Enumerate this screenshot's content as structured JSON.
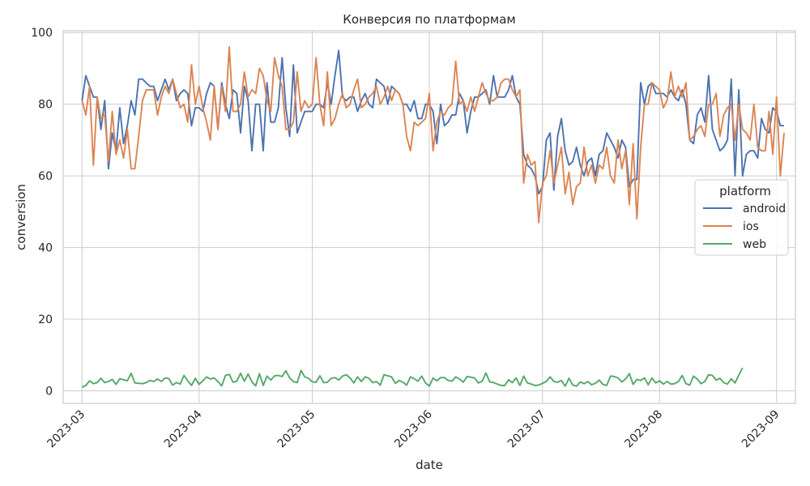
{
  "chart_data": {
    "type": "line",
    "title": "Конверсия по платформам",
    "xlabel": "date",
    "ylabel": "conversion",
    "x_start": "2023-03-01",
    "x_end": "2023-08-31",
    "xlim": [
      "2023-02-24",
      "2023-09-06"
    ],
    "ylim": [
      -3.5,
      100.5
    ],
    "x_ticks": [
      "2023-03-01",
      "2023-04-01",
      "2023-05-01",
      "2023-06-01",
      "2023-07-01",
      "2023-08-01",
      "2023-09-01"
    ],
    "x_tick_labels": [
      "2023-03",
      "2023-04",
      "2023-05",
      "2023-06",
      "2023-07",
      "2023-08",
      "2023-09"
    ],
    "y_ticks": [
      0,
      20,
      40,
      60,
      80,
      100
    ],
    "y_tick_labels": [
      "0",
      "20",
      "40",
      "60",
      "80",
      "100"
    ],
    "grid": true,
    "legend": {
      "title": "platform",
      "placement": "center-right"
    },
    "series": [
      {
        "name": "android",
        "color": "#4c72b0",
        "values": [
          81,
          88,
          85,
          82,
          82,
          73,
          81,
          62,
          72,
          67,
          79,
          69,
          74,
          81,
          77,
          87,
          87,
          86,
          85,
          85,
          81,
          84,
          87,
          84,
          87,
          81,
          83,
          84,
          83,
          74,
          79,
          79,
          78,
          83,
          86,
          85,
          73,
          86,
          80,
          76,
          84,
          83,
          72,
          85,
          81,
          67,
          80,
          80,
          67,
          86,
          75,
          75,
          79,
          93,
          79,
          71,
          91,
          72,
          75,
          78,
          78,
          78,
          80,
          80,
          79,
          86,
          80,
          88,
          95,
          82,
          81,
          82,
          82,
          78,
          81,
          83,
          80,
          79,
          87,
          86,
          85,
          80,
          85,
          84,
          83,
          80,
          80,
          78,
          81,
          76,
          76,
          80,
          80,
          78,
          69,
          80,
          74,
          75,
          77,
          77,
          83,
          81,
          72,
          78,
          82,
          82,
          83,
          84,
          80,
          88,
          82,
          82,
          82,
          84,
          88,
          82,
          80,
          66,
          63,
          62,
          60,
          55,
          57,
          70,
          72,
          56,
          71,
          76,
          67,
          63,
          64,
          68,
          63,
          60,
          64,
          65,
          60,
          66,
          67,
          72,
          70,
          68,
          65,
          70,
          68,
          57,
          59,
          59,
          86,
          80,
          85,
          86,
          83,
          83,
          83,
          82,
          84,
          82,
          81,
          84,
          80,
          70,
          69,
          77,
          79,
          75,
          88,
          73,
          70,
          67,
          68,
          70,
          87,
          60,
          84,
          60,
          66,
          67,
          67,
          65,
          76,
          73,
          72,
          79,
          78,
          74,
          74
        ]
      },
      {
        "name": "ios",
        "color": "#dd8452",
        "values": [
          81,
          77,
          85,
          63,
          82,
          76,
          77,
          64,
          78,
          66,
          70,
          65,
          73,
          62,
          62,
          71,
          81,
          84,
          84,
          84,
          77,
          82,
          85,
          83,
          87,
          83,
          79,
          80,
          75,
          91,
          80,
          85,
          79,
          75,
          70,
          85,
          73,
          85,
          78,
          96,
          78,
          78,
          80,
          89,
          82,
          84,
          83,
          90,
          88,
          81,
          78,
          93,
          88,
          85,
          73,
          73,
          75,
          89,
          78,
          81,
          79,
          80,
          93,
          80,
          74,
          89,
          74,
          76,
          80,
          83,
          79,
          80,
          84,
          87,
          79,
          80,
          82,
          83,
          85,
          80,
          82,
          85,
          81,
          84,
          83,
          80,
          71,
          67,
          75,
          74,
          75,
          76,
          83,
          67,
          75,
          78,
          77,
          79,
          80,
          92,
          80,
          81,
          78,
          82,
          78,
          82,
          86,
          83,
          81,
          81,
          82,
          86,
          87,
          87,
          84,
          82,
          84,
          58,
          66,
          63,
          64,
          47,
          58,
          60,
          67,
          58,
          63,
          68,
          55,
          61,
          52,
          57,
          58,
          68,
          60,
          63,
          58,
          63,
          62,
          68,
          60,
          58,
          70,
          62,
          67,
          52,
          69,
          48,
          68,
          80,
          80,
          86,
          85,
          84,
          79,
          81,
          89,
          82,
          85,
          82,
          86,
          70,
          71,
          73,
          74,
          71,
          80,
          80,
          83,
          71,
          77,
          79,
          80,
          70,
          80,
          73,
          72,
          70,
          80,
          68,
          67,
          67,
          78,
          66,
          82,
          60,
          72
        ]
      },
      {
        "name": "web",
        "color": "#55a868",
        "values": [
          1.0,
          1.5,
          2.8,
          2.0,
          2.3,
          3.5,
          2.3,
          2.6,
          3.2,
          1.8,
          3.4,
          3.1,
          2.8,
          4.9,
          2.2,
          2.1,
          2.0,
          2.3,
          2.9,
          2.6,
          3.3,
          2.6,
          3.6,
          3.4,
          1.6,
          2.3,
          1.9,
          4.3,
          2.8,
          1.5,
          3.5,
          1.8,
          2.8,
          3.9,
          3.3,
          3.6,
          2.6,
          1.4,
          4.3,
          4.6,
          2.4,
          2.7,
          4.9,
          2.7,
          4.7,
          2.5,
          1.4,
          4.8,
          1.5,
          4.1,
          3.0,
          4.2,
          4.3,
          4.0,
          5.6,
          3.6,
          2.6,
          2.3,
          5.7,
          3.9,
          3.5,
          2.5,
          2.4,
          4.2,
          2.3,
          2.4,
          3.5,
          3.7,
          3.0,
          4.1,
          4.5,
          3.6,
          2.2,
          3.9,
          2.6,
          3.9,
          3.5,
          2.3,
          2.6,
          1.6,
          4.5,
          4.2,
          3.9,
          2.1,
          2.9,
          2.4,
          1.6,
          3.9,
          3.4,
          2.7,
          4.1,
          2.2,
          1.3,
          3.6,
          2.8,
          3.7,
          3.7,
          2.9,
          2.7,
          3.9,
          3.3,
          2.4,
          4.0,
          3.8,
          3.6,
          2.2,
          2.7,
          5.0,
          2.5,
          2.3,
          1.9,
          1.5,
          1.5,
          3.1,
          2.3,
          3.6,
          1.5,
          4.1,
          2.2,
          1.9,
          1.5,
          1.6,
          2.1,
          2.6,
          3.9,
          2.6,
          2.4,
          2.9,
          1.3,
          3.5,
          1.6,
          1.3,
          2.5,
          2.0,
          2.6,
          1.7,
          2.1,
          3.0,
          1.8,
          1.5,
          4.1,
          4.0,
          3.6,
          2.5,
          3.3,
          4.8,
          1.8,
          3.2,
          2.9,
          3.6,
          1.7,
          3.6,
          2.2,
          2.8,
          1.9,
          2.6,
          1.9,
          2.0,
          2.6,
          4.3,
          2.0,
          1.6,
          4.1,
          3.3,
          2.0,
          2.6,
          4.5,
          4.3,
          3.0,
          3.5,
          2.3,
          1.9,
          3.4,
          2.2,
          4.4,
          6.4
        ]
      }
    ]
  }
}
